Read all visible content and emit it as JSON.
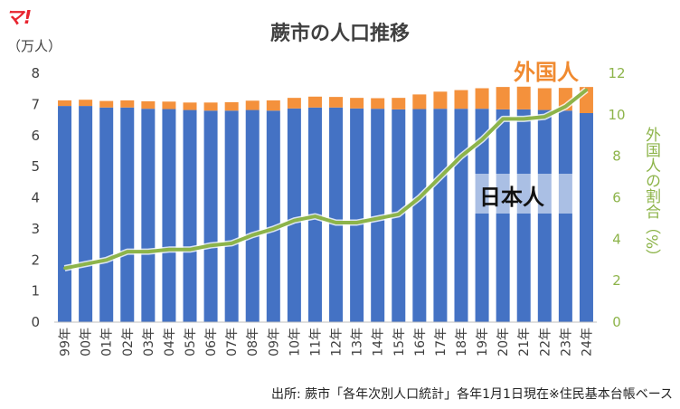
{
  "logo_text": "マ!",
  "source_note": "出所: 蕨市「各年次別人口統計」各年1月1日現在※住民基本台帳ベース",
  "colors": {
    "japanese": "#4472c4",
    "foreign": "#f4913c",
    "ratio_line": "#8db44a",
    "foreign_label": "#f08a30",
    "ratio_axis": "#8db44a"
  },
  "chart_data": {
    "type": "bar",
    "stacked": true,
    "title": "蕨市の人口推移",
    "ylabel": "（万人）",
    "ylabel_right": "外国人の割合（%）",
    "ylim": [
      0,
      8
    ],
    "ylim_right": [
      0,
      12
    ],
    "yticks": [
      0,
      1,
      2,
      3,
      4,
      5,
      6,
      7,
      8
    ],
    "yticks_right": [
      0,
      2,
      4,
      6,
      8,
      10,
      12
    ],
    "grid": false,
    "categories": [
      "99年",
      "00年",
      "01年",
      "02年",
      "03年",
      "04年",
      "05年",
      "06年",
      "07年",
      "08年",
      "09年",
      "10年",
      "11年",
      "12年",
      "13年",
      "14年",
      "15年",
      "16年",
      "17年",
      "18年",
      "19年",
      "20年",
      "21年",
      "22年",
      "23年",
      "24年"
    ],
    "series": [
      {
        "name": "日本人",
        "axis": "left",
        "values": [
          6.95,
          6.95,
          6.9,
          6.9,
          6.86,
          6.85,
          6.82,
          6.8,
          6.8,
          6.82,
          6.8,
          6.87,
          6.9,
          6.9,
          6.87,
          6.86,
          6.84,
          6.85,
          6.86,
          6.86,
          6.86,
          6.84,
          6.84,
          6.82,
          6.8,
          6.72
        ]
      },
      {
        "name": "外国人",
        "axis": "left",
        "values": [
          0.18,
          0.2,
          0.21,
          0.23,
          0.24,
          0.24,
          0.24,
          0.26,
          0.27,
          0.3,
          0.33,
          0.34,
          0.35,
          0.34,
          0.34,
          0.34,
          0.37,
          0.47,
          0.55,
          0.6,
          0.66,
          0.72,
          0.73,
          0.7,
          0.73,
          0.84
        ]
      },
      {
        "name": "外国人の割合",
        "axis": "right",
        "type": "line",
        "values": [
          2.6,
          2.8,
          3.0,
          3.4,
          3.4,
          3.5,
          3.5,
          3.7,
          3.8,
          4.2,
          4.5,
          4.9,
          5.1,
          4.8,
          4.8,
          5.0,
          5.2,
          6.0,
          7.0,
          8.0,
          8.8,
          9.8,
          9.8,
          9.9,
          10.4,
          11.2
        ]
      }
    ]
  }
}
